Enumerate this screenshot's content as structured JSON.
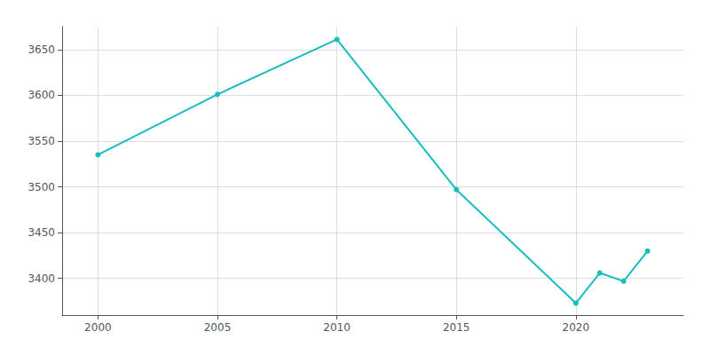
{
  "chart_data": {
    "type": "line",
    "x": [
      2000,
      2005,
      2010,
      2015,
      2020,
      2021,
      2022,
      2023
    ],
    "values": [
      3535,
      3601,
      3661,
      3497,
      3373,
      3406,
      3397,
      3430
    ],
    "color": "#17BEBB",
    "marker": "circle",
    "xlim": [
      1998.5,
      2024.5
    ],
    "ylim": [
      3360,
      3675
    ],
    "xticks": [
      2000,
      2005,
      2010,
      2015,
      2020
    ],
    "yticks": [
      3400,
      3450,
      3500,
      3550,
      3600,
      3650
    ],
    "grid": true
  }
}
